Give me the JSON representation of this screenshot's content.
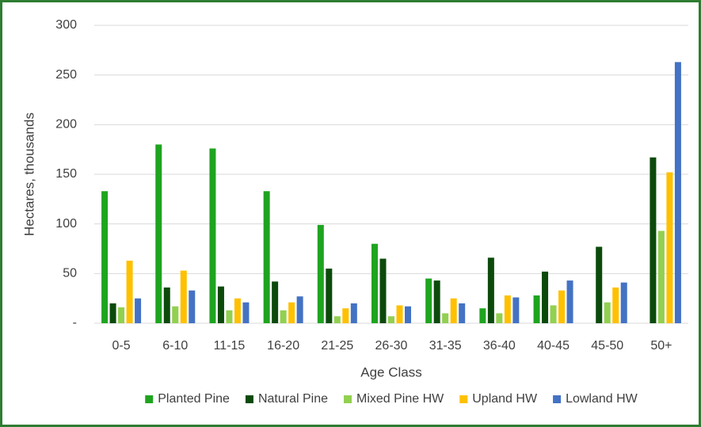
{
  "chart_data": {
    "type": "bar",
    "x_label": "Age Class",
    "y_label": "Hectares, thousands",
    "categories": [
      "0-5",
      "6-10",
      "11-15",
      "16-20",
      "21-25",
      "26-30",
      "31-35",
      "36-40",
      "40-45",
      "45-50",
      "50+"
    ],
    "series": [
      {
        "name": "Planted Pine",
        "color": "#1fa41f",
        "values": [
          133,
          180,
          176,
          133,
          99,
          80,
          45,
          15,
          28,
          0,
          0
        ]
      },
      {
        "name": "Natural Pine",
        "color": "#0b4a0b",
        "values": [
          20,
          36,
          37,
          42,
          55,
          65,
          43,
          66,
          52,
          77,
          167
        ]
      },
      {
        "name": "Mixed Pine HW",
        "color": "#92d050",
        "values": [
          16,
          17,
          13,
          13,
          7,
          7,
          10,
          10,
          18,
          21,
          93
        ]
      },
      {
        "name": "Upland HW",
        "color": "#ffc000",
        "values": [
          63,
          53,
          25,
          21,
          15,
          18,
          25,
          28,
          33,
          36,
          152
        ]
      },
      {
        "name": "Lowland HW",
        "color": "#4472c4",
        "values": [
          25,
          33,
          21,
          27,
          20,
          17,
          20,
          26,
          43,
          41,
          263
        ]
      }
    ],
    "ylim": [
      0,
      300
    ],
    "yticks": [
      {
        "value": 0,
        "label": "-"
      },
      50,
      100,
      150,
      200,
      250,
      300
    ],
    "grid": true,
    "legend": "bottom"
  }
}
